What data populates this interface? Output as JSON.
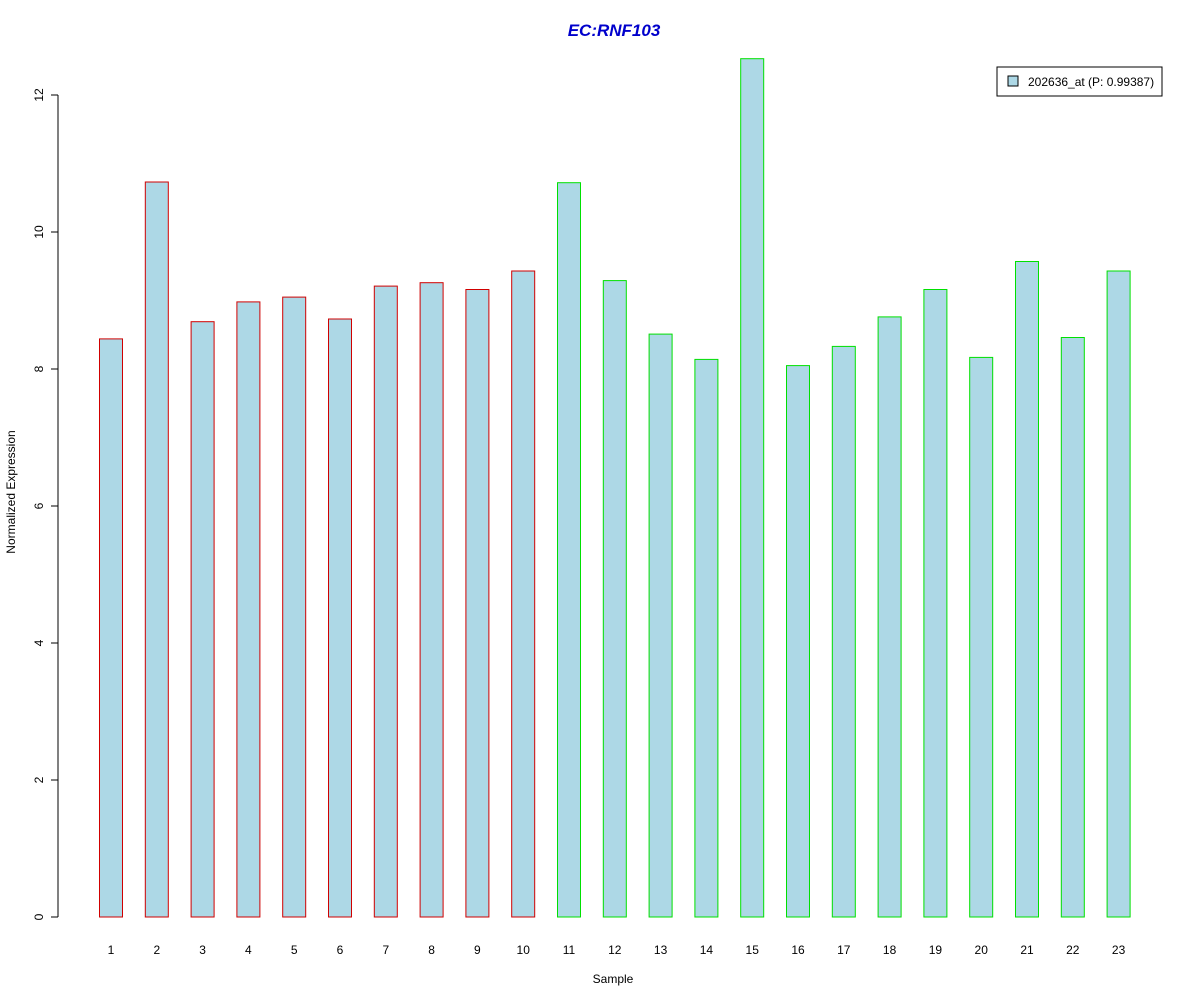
{
  "chart_data": {
    "type": "bar",
    "title": "EC:RNF103",
    "xlabel": "Sample",
    "ylabel": "Normalized Expression",
    "categories": [
      "1",
      "2",
      "3",
      "4",
      "5",
      "6",
      "7",
      "8",
      "9",
      "10",
      "11",
      "12",
      "13",
      "14",
      "15",
      "16",
      "17",
      "18",
      "19",
      "20",
      "21",
      "22",
      "23"
    ],
    "series": [
      {
        "name": "202636_at (P: 0.99387)",
        "values": [
          8.44,
          10.73,
          8.69,
          8.98,
          9.05,
          8.73,
          9.21,
          9.26,
          9.16,
          9.43,
          10.72,
          9.29,
          8.51,
          8.14,
          12.53,
          8.05,
          8.33,
          8.76,
          9.16,
          8.17,
          9.57,
          8.46,
          9.43
        ]
      }
    ],
    "group_border_colors": [
      "#d00000",
      "#d00000",
      "#d00000",
      "#d00000",
      "#d00000",
      "#d00000",
      "#d00000",
      "#d00000",
      "#d00000",
      "#d00000",
      "#00e000",
      "#00e000",
      "#00e000",
      "#00e000",
      "#00e000",
      "#00e000",
      "#00e000",
      "#00e000",
      "#00e000",
      "#00e000",
      "#00e000",
      "#00e000",
      "#00e000"
    ],
    "yticks": [
      0,
      2,
      4,
      6,
      8,
      10,
      12
    ],
    "ytick_labels": [
      "0",
      "2",
      "4",
      "6",
      "8",
      "10",
      "12"
    ],
    "ylim": [
      0,
      12.6
    ],
    "grid": false,
    "legend_position": "top-right",
    "colors": {
      "bar_fill": "#add8e6",
      "title": "#0000cc"
    }
  }
}
